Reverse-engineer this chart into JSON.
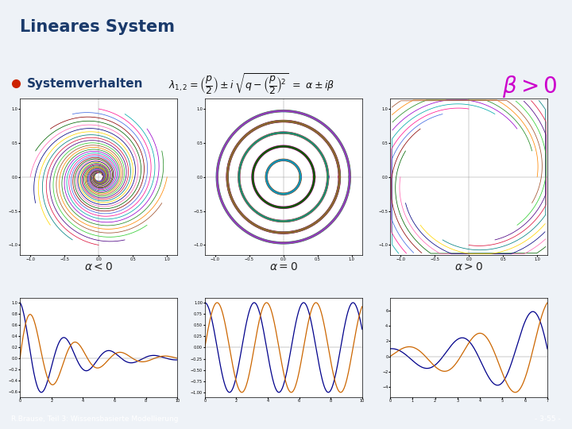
{
  "title": "Lineares System",
  "subtitle": "Systemverhalten",
  "footer_left": "R.Brause, Teil 3: Wissensbasierte Modellierung",
  "footer_right": "- 3-55 -",
  "background_color": "#eef2f7",
  "header_color": "#ffffff",
  "title_color": "#1a3a6b",
  "footer_bg": "#a8bcd8",
  "footer_text_color": "#ffffff",
  "bullet_color": "#cc2200",
  "subtitle_color": "#1a3a6b",
  "beta_color": "#cc00cc",
  "wave_color1": "#00008b",
  "wave_color2": "#cc6600",
  "alpha_label_color": "#222222",
  "divider_color": "#4a6fa5",
  "colors_cycle": [
    "#ff8800",
    "#228b22",
    "#9900cc",
    "#00aaaa",
    "#ff1493",
    "#4169e1",
    "#8b0000",
    "#006400",
    "#ff69b4",
    "#000080",
    "#ffd700",
    "#008080",
    "#dc143c",
    "#4b0082",
    "#32cd32",
    "#a0522d",
    "#00bfff",
    "#ff4500",
    "#2e8b57",
    "#9932cc"
  ]
}
